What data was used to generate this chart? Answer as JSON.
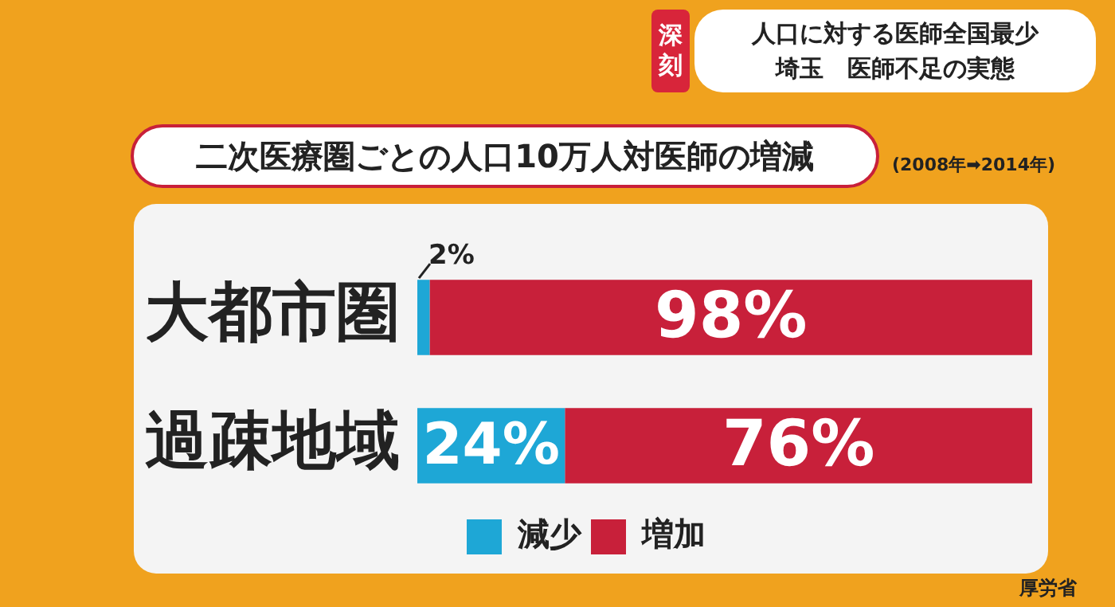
{
  "chart_data": {
    "type": "bar",
    "orientation": "horizontal",
    "stacked": true,
    "title": "二次医療圏ごとの人口10万人対医師の増減",
    "subtitle": "(2008年➡2014年)",
    "categories": [
      "大都市圏",
      "過疎地域"
    ],
    "series": [
      {
        "name": "減少",
        "color": "#1ea7d6",
        "values": [
          2,
          24
        ],
        "value_labels": [
          "2%",
          "24%"
        ]
      },
      {
        "name": "増加",
        "color": "#c8203a",
        "values": [
          98,
          76
        ],
        "value_labels": [
          "98%",
          "76%"
        ]
      }
    ],
    "xlim": [
      0,
      100
    ],
    "tick_labels": "y",
    "legend": "bottom",
    "annotations": [
      "深刻",
      "人口に対する医師全国最少",
      "埼玉　医師不足の実態",
      "厚労省"
    ]
  }
}
